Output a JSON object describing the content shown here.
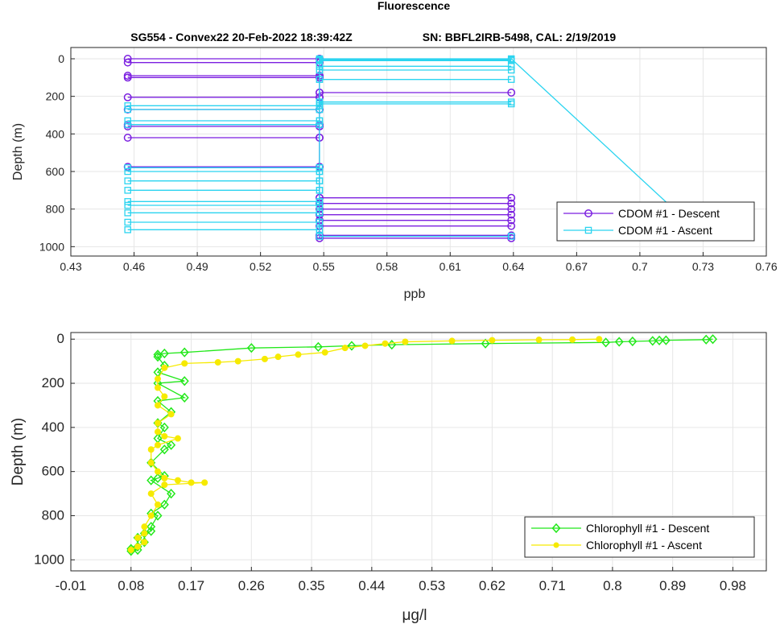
{
  "title": "Fluorescence",
  "subtitle_left": "SG554 - Convex22 20-Feb-2022 18:39:42Z",
  "subtitle_right": "SN: BBFL2IRB-5498, CAL: 2/19/2019",
  "colors": {
    "cdom_descent": "#7b1fe0",
    "cdom_ascent": "#2ad4f0",
    "chl_descent": "#22e81a",
    "chl_ascent": "#f6ea00",
    "grid": "#e6e6e6",
    "axis": "#262626"
  },
  "chart_data": [
    {
      "type": "line",
      "id": "cdom",
      "xlabel": "ppb",
      "ylabel": "Depth (m)",
      "xlim": [
        0.43,
        0.76
      ],
      "ylim": [
        1050,
        -60
      ],
      "y_reversed": true,
      "grid": true,
      "legend_position": "bottom-right",
      "xticks": [
        "0.43",
        "0.46",
        "0.49",
        "0.52",
        "0.55",
        "0.58",
        "0.61",
        "0.64",
        "0.67",
        "0.7",
        "0.73",
        "0.76"
      ],
      "yticks": [
        "0",
        "200",
        "400",
        "600",
        "800",
        "1000"
      ],
      "series": [
        {
          "name": "CDOM #1 - Descent",
          "marker": "circle",
          "x": [
            0.548,
            0.457,
            0.548,
            0.548,
            0.457,
            0.548,
            0.548,
            0.457,
            0.548,
            0.548,
            0.457,
            0.548,
            0.548,
            0.639,
            0.548,
            0.548,
            0.457,
            0.548,
            0.548,
            0.457,
            0.548,
            0.548,
            0.457,
            0.548,
            0.548,
            0.457,
            0.548,
            0.548,
            0.457,
            0.548,
            0.548,
            0.457,
            0.548,
            0.548,
            0.639,
            0.548,
            0.548,
            0.639,
            0.548,
            0.548,
            0.639,
            0.548,
            0.548,
            0.639,
            0.548,
            0.548,
            0.639,
            0.548,
            0.548,
            0.639,
            0.548,
            0.548,
            0.639,
            0.548,
            0.548,
            0.639
          ],
          "y": [
            0,
            0,
            0,
            20,
            20,
            20,
            90,
            90,
            90,
            100,
            100,
            100,
            180,
            180,
            180,
            205,
            205,
            205,
            270,
            270,
            270,
            350,
            350,
            350,
            360,
            360,
            360,
            420,
            420,
            420,
            575,
            575,
            575,
            740,
            740,
            740,
            770,
            770,
            770,
            800,
            800,
            800,
            830,
            830,
            830,
            860,
            860,
            860,
            890,
            890,
            890,
            940,
            940,
            940,
            955,
            955
          ]
        },
        {
          "name": "CDOM #1 - Ascent",
          "marker": "square",
          "x": [
            0.639,
            0.548,
            0.548,
            0.457,
            0.548,
            0.548,
            0.457,
            0.548,
            0.548,
            0.457,
            0.548,
            0.548,
            0.457,
            0.548,
            0.548,
            0.457,
            0.548,
            0.548,
            0.457,
            0.548,
            0.548,
            0.457,
            0.548,
            0.548,
            0.457,
            0.548,
            0.548,
            0.457,
            0.548,
            0.548,
            0.457,
            0.548,
            0.548,
            0.457,
            0.548,
            0.548,
            0.457,
            0.548,
            0.548,
            0.457,
            0.548,
            0.548,
            0.639,
            0.548,
            0.548,
            0.639,
            0.548,
            0.548,
            0.639,
            0.548,
            0.548,
            0.639,
            0.548,
            0.548,
            0.639,
            0.548,
            0.548,
            0.639,
            0.548,
            0.548,
            0.639,
            0.548,
            0.548,
            0.639,
            0.73
          ],
          "y": [
            945,
            945,
            910,
            910,
            910,
            870,
            870,
            870,
            820,
            820,
            820,
            780,
            780,
            780,
            760,
            760,
            760,
            700,
            700,
            700,
            650,
            650,
            650,
            600,
            600,
            600,
            580,
            580,
            580,
            350,
            350,
            350,
            330,
            330,
            330,
            270,
            270,
            270,
            250,
            250,
            250,
            240,
            240,
            240,
            230,
            230,
            230,
            110,
            110,
            110,
            60,
            60,
            60,
            40,
            40,
            40,
            10,
            10,
            10,
            5,
            5,
            5,
            0,
            0,
            945
          ]
        }
      ]
    },
    {
      "type": "line",
      "id": "chlorophyll",
      "xlabel": "μg/l",
      "ylabel": "Depth (m)",
      "xlim": [
        -0.01,
        1.03
      ],
      "ylim": [
        1050,
        -30
      ],
      "y_reversed": true,
      "grid": true,
      "legend_position": "bottom-right",
      "xticks": [
        "-0.01",
        "0.08",
        "0.17",
        "0.26",
        "0.35",
        "0.44",
        "0.53",
        "0.62",
        "0.71",
        "0.8",
        "0.89",
        "0.98"
      ],
      "yticks": [
        "0",
        "200",
        "400",
        "600",
        "800",
        "1000"
      ],
      "series": [
        {
          "name": "Chlorophyll #1 - Descent",
          "marker": "diamond",
          "x": [
            0.95,
            0.94,
            0.88,
            0.87,
            0.86,
            0.83,
            0.81,
            0.79,
            0.61,
            0.47,
            0.41,
            0.36,
            0.26,
            0.16,
            0.13,
            0.12,
            0.12,
            0.13,
            0.12,
            0.16,
            0.12,
            0.16,
            0.12,
            0.14,
            0.12,
            0.13,
            0.12,
            0.14,
            0.13,
            0.11,
            0.13,
            0.12,
            0.11,
            0.14,
            0.13,
            0.11,
            0.12,
            0.11,
            0.11,
            0.1,
            0.09,
            0.1,
            0.09,
            0.08,
            0.09,
            0.08
          ],
          "y": [
            0,
            2,
            5,
            6,
            8,
            10,
            12,
            15,
            20,
            25,
            30,
            35,
            40,
            60,
            65,
            70,
            80,
            120,
            150,
            190,
            200,
            265,
            280,
            330,
            380,
            400,
            450,
            480,
            500,
            560,
            620,
            630,
            640,
            700,
            750,
            790,
            800,
            850,
            870,
            880,
            900,
            920,
            940,
            950,
            955,
            960
          ]
        },
        {
          "name": "Chlorophyll #1 - Ascent",
          "marker": "dot",
          "x": [
            0.78,
            0.74,
            0.69,
            0.62,
            0.56,
            0.49,
            0.46,
            0.43,
            0.4,
            0.37,
            0.33,
            0.3,
            0.28,
            0.24,
            0.21,
            0.16,
            0.13,
            0.12,
            0.12,
            0.13,
            0.12,
            0.14,
            0.12,
            0.12,
            0.13,
            0.15,
            0.12,
            0.11,
            0.11,
            0.12,
            0.13,
            0.15,
            0.17,
            0.19,
            0.13,
            0.11,
            0.12,
            0.11,
            0.1,
            0.1,
            0.09,
            0.1,
            0.09,
            0.08
          ],
          "y": [
            0,
            2,
            3,
            5,
            8,
            12,
            20,
            30,
            40,
            60,
            70,
            80,
            90,
            100,
            105,
            110,
            130,
            180,
            220,
            260,
            300,
            340,
            380,
            420,
            440,
            450,
            480,
            500,
            560,
            600,
            630,
            640,
            650,
            650,
            660,
            700,
            750,
            800,
            850,
            880,
            900,
            920,
            940,
            955
          ]
        }
      ]
    }
  ]
}
